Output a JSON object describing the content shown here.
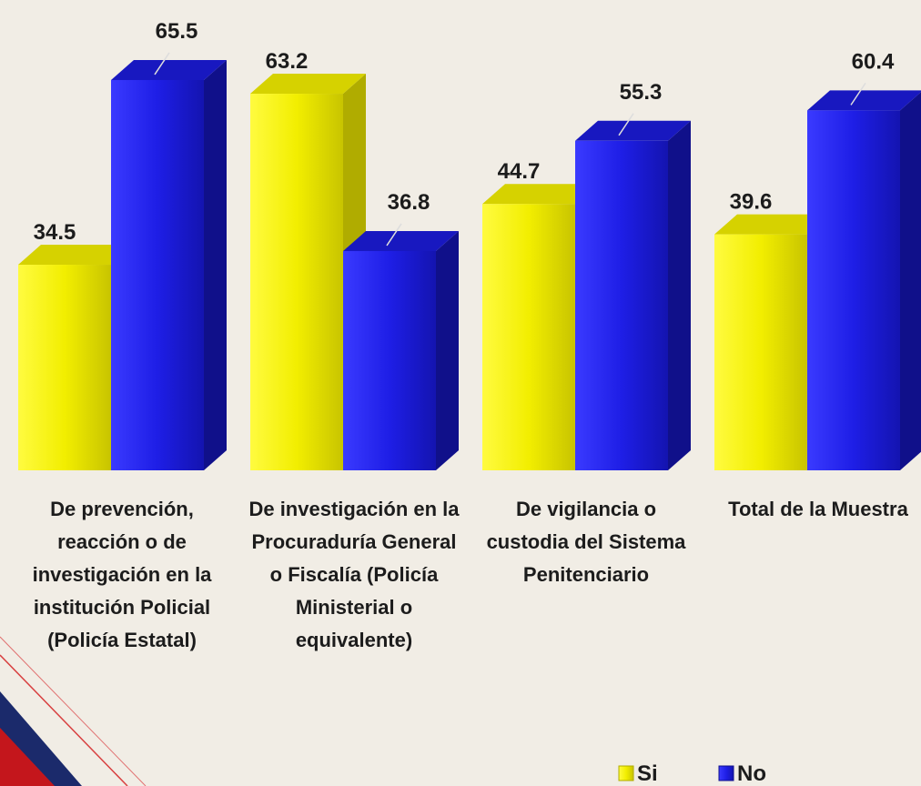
{
  "chart_data": {
    "type": "bar",
    "categories": [
      "De prevención, reacción o de investigación en la institución Policial (Policía Estatal)",
      "De investigación en la Procuraduría General o Fiscalía (Policía Ministerial o equivalente)",
      "De vigilancia o custodia del Sistema Penitenciario",
      "Total de la Muestra"
    ],
    "series": [
      {
        "name": "Si",
        "color": "#f2ee00",
        "values": [
          34.5,
          63.2,
          44.7,
          39.6
        ]
      },
      {
        "name": "No",
        "color": "#1e1ee6",
        "values": [
          65.5,
          36.8,
          55.3,
          60.4
        ]
      }
    ],
    "legend": "bottom-right"
  }
}
